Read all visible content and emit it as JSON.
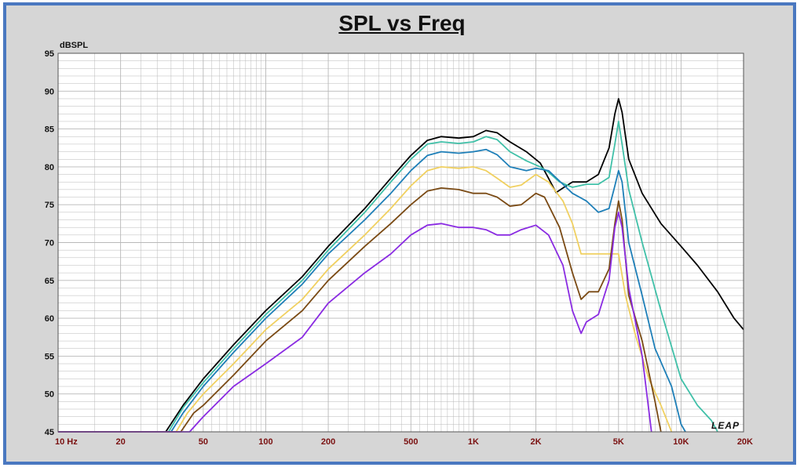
{
  "chart_data": {
    "type": "line",
    "title": "SPL vs Freq",
    "ylabel": "dBSPL",
    "xlabel": "",
    "x_scale": "log",
    "xlim": [
      10,
      20000
    ],
    "ylim": [
      45,
      95
    ],
    "y_ticks": [
      95,
      90,
      85,
      80,
      75,
      70,
      65,
      60,
      55,
      50,
      45
    ],
    "x_ticks": [
      {
        "value": 10,
        "label": "10  Hz"
      },
      {
        "value": 20,
        "label": "20"
      },
      {
        "value": 50,
        "label": "50"
      },
      {
        "value": 100,
        "label": "100"
      },
      {
        "value": 200,
        "label": "200"
      },
      {
        "value": 500,
        "label": "500"
      },
      {
        "value": 1000,
        "label": "1K"
      },
      {
        "value": 2000,
        "label": "2K"
      },
      {
        "value": 5000,
        "label": "5K"
      },
      {
        "value": 10000,
        "label": "10K"
      },
      {
        "value": 20000,
        "label": "20K"
      }
    ],
    "grid": true,
    "watermark": "LEAP",
    "colors": {
      "tick_label": "#7a1010",
      "axis_label": "#111111",
      "plot_bg": "#ffffff",
      "grid": "#b8b8b8"
    },
    "series": [
      {
        "color": "#000000",
        "points": [
          [
            10,
            45
          ],
          [
            33,
            45
          ],
          [
            40,
            48.5
          ],
          [
            50,
            52
          ],
          [
            70,
            56.5
          ],
          [
            100,
            61
          ],
          [
            150,
            65.5
          ],
          [
            200,
            69.5
          ],
          [
            300,
            74.5
          ],
          [
            400,
            78.5
          ],
          [
            500,
            81.5
          ],
          [
            600,
            83.5
          ],
          [
            700,
            84
          ],
          [
            850,
            83.8
          ],
          [
            1000,
            84
          ],
          [
            1150,
            84.8
          ],
          [
            1300,
            84.5
          ],
          [
            1500,
            83.3
          ],
          [
            1800,
            82
          ],
          [
            2100,
            80.5
          ],
          [
            2300,
            78.5
          ],
          [
            2500,
            76.6
          ],
          [
            2700,
            77.2
          ],
          [
            3000,
            78
          ],
          [
            3500,
            78
          ],
          [
            4000,
            79
          ],
          [
            4500,
            82.5
          ],
          [
            4800,
            87
          ],
          [
            5000,
            89
          ],
          [
            5200,
            87.2
          ],
          [
            5600,
            81
          ],
          [
            6500,
            76.5
          ],
          [
            8000,
            72.5
          ],
          [
            10000,
            69.5
          ],
          [
            12000,
            67
          ],
          [
            15000,
            63.5
          ],
          [
            18000,
            60
          ],
          [
            20000,
            58.5
          ]
        ]
      },
      {
        "color": "#40c0a8",
        "points": [
          [
            10,
            45
          ],
          [
            34,
            45
          ],
          [
            40,
            48.2
          ],
          [
            50,
            51.5
          ],
          [
            70,
            56
          ],
          [
            100,
            60.5
          ],
          [
            150,
            65
          ],
          [
            200,
            69
          ],
          [
            300,
            74
          ],
          [
            400,
            78
          ],
          [
            500,
            81
          ],
          [
            600,
            83
          ],
          [
            700,
            83.3
          ],
          [
            850,
            83.1
          ],
          [
            1000,
            83.3
          ],
          [
            1150,
            84
          ],
          [
            1300,
            83.6
          ],
          [
            1500,
            82
          ],
          [
            1800,
            80.8
          ],
          [
            2100,
            80
          ],
          [
            2300,
            79.3
          ],
          [
            2600,
            78
          ],
          [
            3000,
            77.3
          ],
          [
            3500,
            77.7
          ],
          [
            4000,
            77.7
          ],
          [
            4500,
            78.6
          ],
          [
            4800,
            83
          ],
          [
            5000,
            86
          ],
          [
            5200,
            83
          ],
          [
            5600,
            77
          ],
          [
            6500,
            70
          ],
          [
            8000,
            61
          ],
          [
            10000,
            52
          ],
          [
            12000,
            48.5
          ],
          [
            14000,
            46.5
          ],
          [
            15000,
            45
          ]
        ]
      },
      {
        "color": "#1e7fb8",
        "points": [
          [
            10,
            45
          ],
          [
            35,
            45
          ],
          [
            40,
            47.5
          ],
          [
            50,
            51
          ],
          [
            70,
            55.5
          ],
          [
            100,
            60
          ],
          [
            150,
            64.5
          ],
          [
            200,
            68.5
          ],
          [
            300,
            73
          ],
          [
            400,
            76.5
          ],
          [
            500,
            79.5
          ],
          [
            600,
            81.5
          ],
          [
            700,
            82
          ],
          [
            850,
            81.8
          ],
          [
            1000,
            82
          ],
          [
            1150,
            82.3
          ],
          [
            1300,
            81.6
          ],
          [
            1500,
            80
          ],
          [
            1800,
            79.5
          ],
          [
            2000,
            79.8
          ],
          [
            2300,
            79.5
          ],
          [
            2700,
            77.7
          ],
          [
            3000,
            76.5
          ],
          [
            3500,
            75.5
          ],
          [
            4000,
            74
          ],
          [
            4500,
            74.5
          ],
          [
            4800,
            77.5
          ],
          [
            5000,
            79.5
          ],
          [
            5200,
            78
          ],
          [
            5600,
            70
          ],
          [
            6500,
            63
          ],
          [
            7500,
            56
          ],
          [
            9000,
            51
          ],
          [
            10000,
            46
          ],
          [
            10500,
            45
          ]
        ]
      },
      {
        "color": "#f0d060",
        "points": [
          [
            10,
            45
          ],
          [
            37,
            45
          ],
          [
            42,
            47.5
          ],
          [
            50,
            50
          ],
          [
            70,
            54
          ],
          [
            100,
            58.5
          ],
          [
            150,
            62.5
          ],
          [
            200,
            66.5
          ],
          [
            300,
            71
          ],
          [
            400,
            74.5
          ],
          [
            500,
            77.5
          ],
          [
            600,
            79.5
          ],
          [
            700,
            80
          ],
          [
            850,
            79.8
          ],
          [
            1000,
            80
          ],
          [
            1150,
            79.5
          ],
          [
            1300,
            78.5
          ],
          [
            1500,
            77.3
          ],
          [
            1700,
            77.6
          ],
          [
            2000,
            79
          ],
          [
            2300,
            78
          ],
          [
            2700,
            75.5
          ],
          [
            3000,
            72.5
          ],
          [
            3300,
            68.5
          ],
          [
            3600,
            68.5
          ],
          [
            4000,
            68.5
          ],
          [
            4500,
            68.5
          ],
          [
            4800,
            68.5
          ],
          [
            5000,
            68.5
          ],
          [
            5400,
            63
          ],
          [
            6000,
            58
          ],
          [
            7000,
            52
          ],
          [
            8000,
            48.5
          ],
          [
            9000,
            45
          ]
        ]
      },
      {
        "color": "#7a4a14",
        "points": [
          [
            10,
            45
          ],
          [
            39,
            45
          ],
          [
            45,
            47.5
          ],
          [
            50,
            48.5
          ],
          [
            70,
            52.5
          ],
          [
            100,
            57
          ],
          [
            150,
            61
          ],
          [
            200,
            65
          ],
          [
            300,
            69.5
          ],
          [
            400,
            72.5
          ],
          [
            500,
            75
          ],
          [
            600,
            76.8
          ],
          [
            700,
            77.2
          ],
          [
            850,
            77
          ],
          [
            1000,
            76.5
          ],
          [
            1150,
            76.5
          ],
          [
            1300,
            76
          ],
          [
            1500,
            74.8
          ],
          [
            1700,
            75
          ],
          [
            2000,
            76.5
          ],
          [
            2200,
            76
          ],
          [
            2600,
            72
          ],
          [
            3000,
            66
          ],
          [
            3300,
            62.5
          ],
          [
            3600,
            63.5
          ],
          [
            4000,
            63.5
          ],
          [
            4500,
            66.5
          ],
          [
            4800,
            72.5
          ],
          [
            5000,
            75.5
          ],
          [
            5200,
            73
          ],
          [
            5600,
            63
          ],
          [
            6500,
            57
          ],
          [
            7500,
            49
          ],
          [
            8000,
            45
          ]
        ]
      },
      {
        "color": "#8a2be2",
        "points": [
          [
            10,
            45
          ],
          [
            43,
            45
          ],
          [
            50,
            47
          ],
          [
            70,
            51
          ],
          [
            100,
            54
          ],
          [
            150,
            57.5
          ],
          [
            200,
            62
          ],
          [
            300,
            66
          ],
          [
            400,
            68.5
          ],
          [
            500,
            71
          ],
          [
            600,
            72.3
          ],
          [
            700,
            72.5
          ],
          [
            850,
            72
          ],
          [
            1000,
            72
          ],
          [
            1150,
            71.7
          ],
          [
            1300,
            71
          ],
          [
            1500,
            71
          ],
          [
            1700,
            71.7
          ],
          [
            2000,
            72.3
          ],
          [
            2300,
            71
          ],
          [
            2700,
            67
          ],
          [
            3000,
            61
          ],
          [
            3300,
            58
          ],
          [
            3500,
            59.5
          ],
          [
            4000,
            60.5
          ],
          [
            4500,
            65
          ],
          [
            4800,
            72
          ],
          [
            5000,
            74
          ],
          [
            5200,
            72
          ],
          [
            5600,
            64
          ],
          [
            6500,
            55
          ],
          [
            7200,
            45
          ]
        ]
      }
    ]
  }
}
